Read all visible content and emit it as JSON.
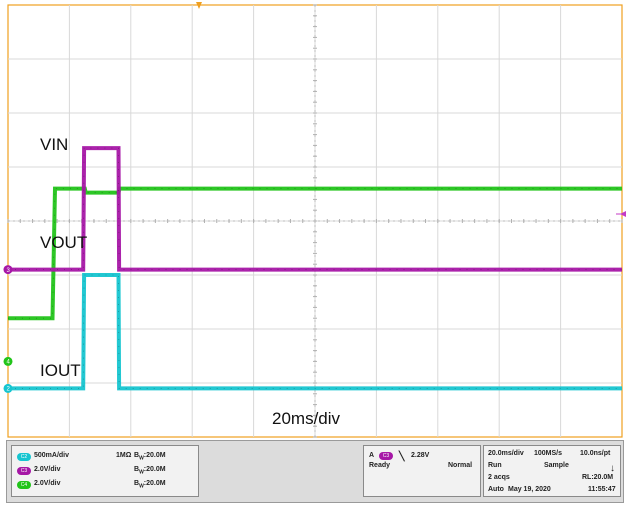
{
  "chart_data": {
    "type": "line",
    "title": "",
    "xlabel": "20ms/div",
    "ylabel": "",
    "xlim": [
      0,
      200
    ],
    "grid": true,
    "x_unit": "ms",
    "series": [
      {
        "name": "VIN",
        "channel": "C4",
        "color": "#22c41a",
        "scale": "2.0V/div",
        "points": [
          [
            0,
            1.6
          ],
          [
            14.5,
            1.6
          ],
          [
            15.3,
            6.4
          ],
          [
            25,
            6.4
          ],
          [
            25.3,
            6.25
          ],
          [
            36,
            6.25
          ],
          [
            36.3,
            6.4
          ],
          [
            200,
            6.4
          ]
        ]
      },
      {
        "name": "VOUT",
        "channel": "C3",
        "color": "#a617a6",
        "scale": "2.0V/div",
        "points": [
          [
            0,
            0
          ],
          [
            24.5,
            0
          ],
          [
            24.8,
            4.5
          ],
          [
            36,
            4.5
          ],
          [
            36.2,
            0
          ],
          [
            200,
            0
          ]
        ]
      },
      {
        "name": "IOUT",
        "channel": "C2",
        "color": "#16c5d0",
        "scale": "500mA/div",
        "points": [
          [
            0,
            0
          ],
          [
            24.5,
            0
          ],
          [
            24.8,
            1.05
          ],
          [
            36,
            1.05
          ],
          [
            36.2,
            0
          ],
          [
            200,
            0
          ]
        ]
      }
    ],
    "annotations": [
      "VIN",
      "VOUT",
      "IOUT",
      "20ms/div"
    ]
  },
  "panel": {
    "channels": [
      {
        "chip": "C2",
        "color": "#16c5d0",
        "scale": "500mA/div",
        "coupling": "1MΩ",
        "bw": "20.0M"
      },
      {
        "chip": "C3",
        "color": "#a617a6",
        "scale": "2.0V/div",
        "coupling": "",
        "bw": "20.0M"
      },
      {
        "chip": "C4",
        "color": "#22c41a",
        "scale": "2.0V/div",
        "coupling": "",
        "bw": "20.0M"
      }
    ],
    "bw_prefix": "B",
    "bw_sub": "W",
    "trigger": {
      "source": "A",
      "chip": "C3",
      "slope": "╲",
      "level": "2.28V",
      "state": "Ready",
      "mode": "Normal"
    },
    "acq": {
      "timebase": "20.0ms/div",
      "rate": "100MS/s",
      "resolution": "10.0ns/pt",
      "run": "Run",
      "sample": "Sample",
      "arrow": "↓",
      "acqs": "2 acqs",
      "record": "RL:20.0M",
      "auto": "Auto",
      "date": "May 19, 2020",
      "time": "11:55:47"
    }
  }
}
